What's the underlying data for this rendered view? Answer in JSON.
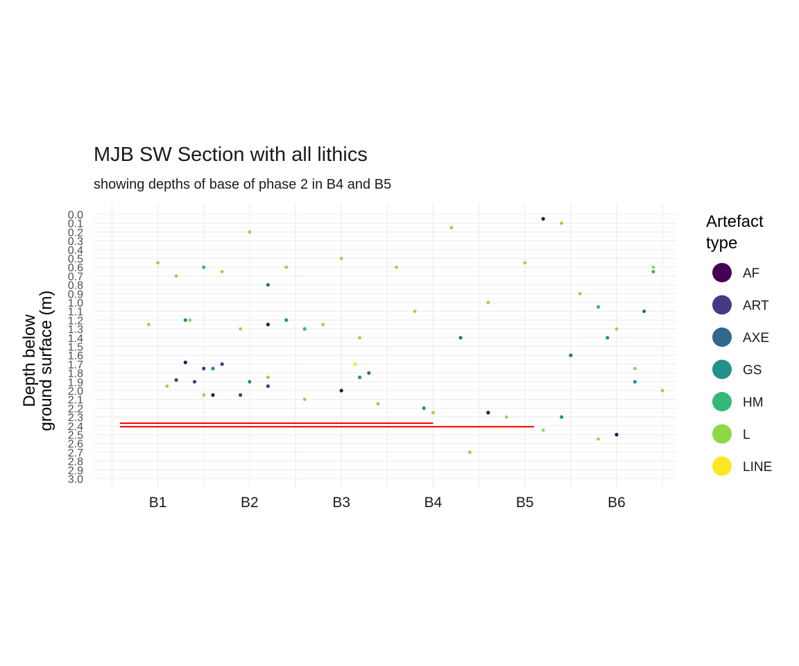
{
  "chart_data": {
    "type": "scatter",
    "title": "MJB SW Section with all lithics",
    "subtitle": "showing depths of base of phase 2 in B4 and B5",
    "ylabel_lines": [
      "Depth below",
      "ground surface (m)"
    ],
    "xlabel": "",
    "categories": [
      "B1",
      "B2",
      "B3",
      "B4",
      "B5",
      "B6"
    ],
    "x_range": [
      0.3,
      6.65
    ],
    "y_range": [
      0,
      3.0
    ],
    "y_reversed": true,
    "y_ticks": [
      "0.0",
      "0.1",
      "0.2",
      "0.3",
      "0.4",
      "0.5",
      "0.6",
      "0.7",
      "0.8",
      "0.9",
      "1.0",
      "1.1",
      "1.2",
      "1.3",
      "1.4",
      "1.5",
      "1.6",
      "1.7",
      "1.8",
      "1.9",
      "2.0",
      "2.1",
      "2.2",
      "2.3",
      "2.4",
      "2.5",
      "2.6",
      "2.7",
      "2.8",
      "2.9",
      "3.0"
    ],
    "grid": true,
    "legend": {
      "title_lines": [
        "Artefact",
        "type"
      ],
      "position": "right",
      "items": [
        {
          "name": "AF",
          "color": "#440154"
        },
        {
          "name": "ART",
          "color": "#443A83"
        },
        {
          "name": "AXE",
          "color": "#31688E"
        },
        {
          "name": "GS",
          "color": "#21908C"
        },
        {
          "name": "HM",
          "color": "#35B779"
        },
        {
          "name": "L",
          "color": "#8FD744"
        },
        {
          "name": "LINE",
          "color": "#FDE725"
        }
      ]
    },
    "reference_lines": [
      {
        "label": "base of phase 2 in B4",
        "color": "#ff0000",
        "x": [
          0.3,
          4.0
        ],
        "y": 2.37
      },
      {
        "label": "base of phase 2 in B5",
        "color": "#ff0000",
        "x": [
          0.3,
          5.1
        ],
        "y": 2.41
      }
    ],
    "series": [
      {
        "name": "L",
        "color": "#8FD744",
        "x": [
          0.9,
          1.0,
          1.1,
          1.2,
          1.35,
          1.5,
          1.7,
          1.9,
          2.0,
          2.2,
          2.4,
          2.6,
          2.8,
          3.0,
          3.2,
          3.4,
          3.6,
          3.8,
          4.0,
          4.2,
          4.4,
          4.6,
          4.8,
          5.0,
          5.2,
          5.4,
          5.6,
          5.8,
          6.0,
          6.2,
          6.4,
          6.5
        ],
        "y": [
          1.25,
          0.55,
          1.95,
          0.7,
          1.2,
          2.05,
          0.65,
          1.3,
          0.2,
          1.85,
          0.6,
          2.1,
          1.25,
          0.5,
          1.4,
          2.15,
          0.6,
          1.1,
          2.25,
          0.15,
          2.7,
          1.0,
          2.3,
          0.55,
          2.45,
          0.1,
          0.9,
          2.55,
          1.3,
          1.75,
          0.6,
          2.0
        ]
      },
      {
        "name": "GS",
        "color": "#21908C",
        "x": [
          1.3,
          1.6,
          2.0,
          2.4,
          3.2,
          3.9,
          5.4,
          5.9,
          6.2
        ],
        "y": [
          1.2,
          1.75,
          1.9,
          1.2,
          1.85,
          2.2,
          2.3,
          1.4,
          1.9
        ]
      },
      {
        "name": "ART",
        "color": "#443A83",
        "x": [
          1.2,
          1.4,
          1.5,
          1.7,
          1.9,
          2.2
        ],
        "y": [
          1.88,
          1.9,
          1.75,
          1.7,
          2.05,
          1.95
        ]
      },
      {
        "name": "AF",
        "color": "#440154",
        "x": [
          1.3,
          1.6,
          2.2,
          3.0,
          4.6,
          5.2,
          6.0
        ],
        "y": [
          1.68,
          2.05,
          1.25,
          2.0,
          2.25,
          0.05,
          2.5
        ]
      },
      {
        "name": "AXE",
        "color": "#31688E",
        "x": [
          2.2,
          3.3,
          4.3,
          5.5,
          6.3
        ],
        "y": [
          0.8,
          1.8,
          1.4,
          1.6,
          1.1
        ]
      },
      {
        "name": "HM",
        "color": "#35B779",
        "x": [
          1.5,
          2.6,
          5.8,
          6.4
        ],
        "y": [
          0.6,
          1.3,
          1.05,
          0.65
        ]
      },
      {
        "name": "LINE",
        "color": "#FDE725",
        "x": [
          3.15
        ],
        "y": [
          1.7
        ]
      }
    ]
  }
}
